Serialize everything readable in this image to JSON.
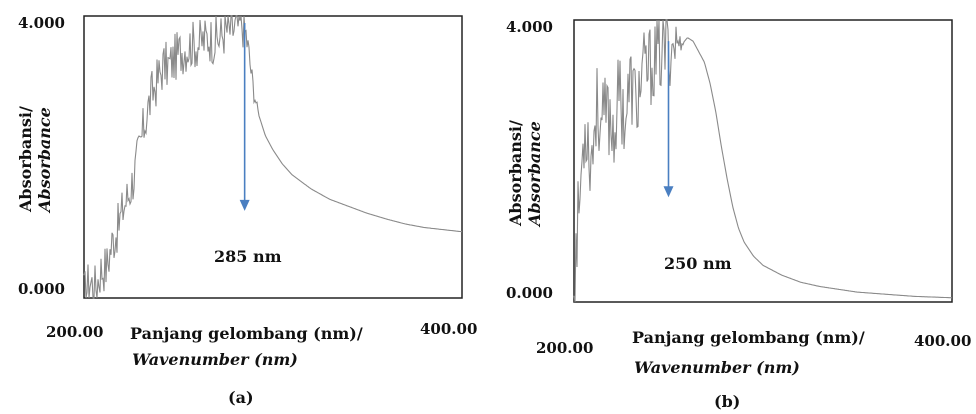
{
  "chart_data": [
    {
      "type": "line",
      "panel_label": "(a)",
      "ylabel_line1": "Absorbansi/",
      "ylabel_line2": "Absorbance",
      "xlabel_line1": "Panjang gelombang (nm)/",
      "xlabel_line2": "Wavenumber (nm)",
      "xlim": [
        200,
        400
      ],
      "ylim": [
        0,
        4
      ],
      "x_tick_labels": [
        "200.00",
        "400.00"
      ],
      "y_tick_labels": [
        "0.000",
        "4.000"
      ],
      "annotation": {
        "text": "285 nm",
        "x": 285,
        "arrow_from_y": 3.9,
        "arrow_to_y": 1.25
      },
      "noise_level": 0.35,
      "series": [
        {
          "x": [
            200,
            203,
            206,
            209,
            212,
            215,
            218,
            221,
            224,
            227,
            230,
            233,
            236,
            239,
            242,
            245,
            248,
            251,
            254,
            257,
            260,
            263,
            266,
            269,
            272,
            275,
            278,
            281,
            284,
            286,
            288,
            290,
            293,
            296,
            300,
            305,
            310,
            320,
            330,
            340,
            350,
            360,
            370,
            380,
            390,
            400
          ],
          "y": [
            0.05,
            0.25,
            0.15,
            0.4,
            0.45,
            0.8,
            1.0,
            1.3,
            1.5,
            1.8,
            2.2,
            2.6,
            2.9,
            3.1,
            3.3,
            3.3,
            3.4,
            3.5,
            3.55,
            3.6,
            3.6,
            3.65,
            3.7,
            3.65,
            3.7,
            3.8,
            3.8,
            3.85,
            3.9,
            3.7,
            3.3,
            2.9,
            2.55,
            2.3,
            2.1,
            1.9,
            1.75,
            1.55,
            1.4,
            1.3,
            1.2,
            1.12,
            1.05,
            1.0,
            0.97,
            0.94
          ]
        }
      ]
    },
    {
      "type": "line",
      "panel_label": "(b)",
      "ylabel_line1": "Absorbansi/",
      "ylabel_line2": "Absorbance",
      "xlabel_line1": "Panjang gelombang (nm)/",
      "xlabel_line2": "Wavenumber (nm)",
      "xlim": [
        200,
        400
      ],
      "ylim": [
        0,
        4
      ],
      "x_tick_labels": [
        "200.00",
        "400.00"
      ],
      "y_tick_labels": [
        "0.000",
        "4.000"
      ],
      "annotation": {
        "text": "250 nm",
        "x": 250,
        "arrow_from_y": 3.7,
        "arrow_to_y": 1.5
      },
      "noise_level": 0.6,
      "series": [
        {
          "x": [
            200,
            203,
            206,
            209,
            212,
            215,
            218,
            221,
            224,
            227,
            230,
            233,
            236,
            239,
            242,
            245,
            248,
            251,
            254,
            257,
            260,
            263,
            266,
            269,
            272,
            275,
            278,
            281,
            284,
            287,
            290,
            295,
            300,
            310,
            320,
            330,
            340,
            350,
            360,
            370,
            380,
            390,
            400
          ],
          "y": [
            0.3,
            1.5,
            2.6,
            2.0,
            2.8,
            2.5,
            2.7,
            2.4,
            3.0,
            2.6,
            3.1,
            2.8,
            3.2,
            3.3,
            3.4,
            3.5,
            3.6,
            3.6,
            3.7,
            3.65,
            3.75,
            3.7,
            3.55,
            3.4,
            3.1,
            2.7,
            2.2,
            1.75,
            1.35,
            1.05,
            0.85,
            0.65,
            0.52,
            0.38,
            0.28,
            0.22,
            0.18,
            0.14,
            0.12,
            0.1,
            0.08,
            0.07,
            0.06
          ]
        }
      ]
    }
  ]
}
